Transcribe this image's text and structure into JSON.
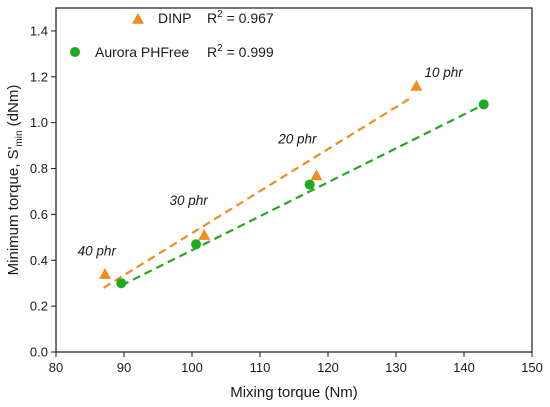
{
  "chart_data": {
    "type": "scatter",
    "xlabel": "Mixing torque (Nm)",
    "ylabel_main": "Minimum torque, S'",
    "ylabel_sub": "min",
    "ylabel_unit": " (dNm)",
    "xlim": [
      80,
      150
    ],
    "ylim": [
      0.0,
      1.5
    ],
    "xticks": [
      80,
      90,
      100,
      110,
      120,
      130,
      140,
      150
    ],
    "yticks": [
      0.0,
      0.2,
      0.4,
      0.6,
      0.8,
      1.0,
      1.2,
      1.4
    ],
    "ytick_labels": [
      "0.0",
      "0.2",
      "0.4",
      "0.6",
      "0.8",
      "1.0",
      "1.2",
      "1.4"
    ],
    "grid": false,
    "legend_position": "top-left",
    "series": [
      {
        "name": "DINP",
        "marker": "triangle",
        "color": "#f28c1e",
        "r2_prefix": "R",
        "r2_sup": "2",
        "r2_value": " = 0.967",
        "points": [
          {
            "x": 87.2,
            "y": 0.34
          },
          {
            "x": 101.8,
            "y": 0.51
          },
          {
            "x": 118.3,
            "y": 0.77
          },
          {
            "x": 133.0,
            "y": 1.16
          }
        ],
        "fit_line": {
          "x0": 87.0,
          "y0": 0.28,
          "x1": 132.3,
          "y1": 1.11
        }
      },
      {
        "name": "Aurora PHFree",
        "marker": "circle",
        "color": "#1faa1f",
        "r2_prefix": "R",
        "r2_sup": "2",
        "r2_value": " = 0.999",
        "points": [
          {
            "x": 89.6,
            "y": 0.3
          },
          {
            "x": 100.6,
            "y": 0.47
          },
          {
            "x": 117.3,
            "y": 0.73
          },
          {
            "x": 142.9,
            "y": 1.08
          }
        ],
        "fit_line": {
          "x0": 89.6,
          "y0": 0.29,
          "x1": 142.3,
          "y1": 1.07
        }
      }
    ],
    "annotations": [
      {
        "text": "10 phr",
        "x": 137.0,
        "y": 1.2
      },
      {
        "text": "20 phr",
        "x": 115.5,
        "y": 0.91
      },
      {
        "text": "30 phr",
        "x": 99.5,
        "y": 0.64
      },
      {
        "text": "40 phr",
        "x": 86.0,
        "y": 0.42
      }
    ]
  }
}
